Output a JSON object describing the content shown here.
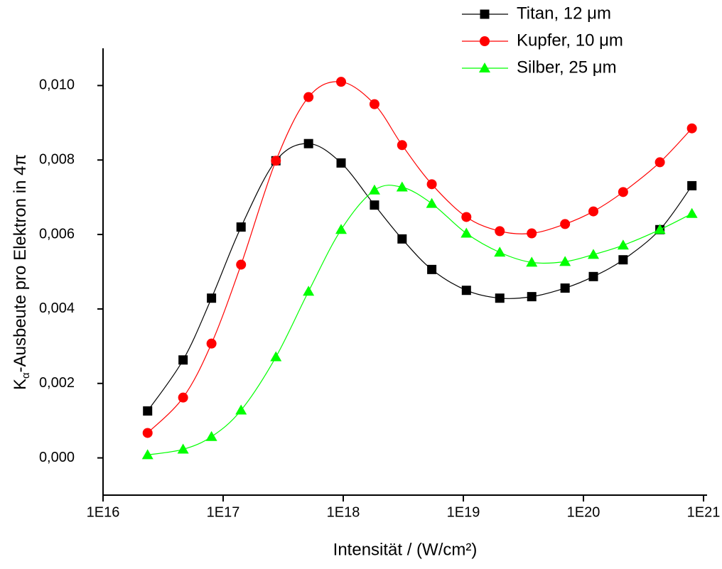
{
  "chart_data": {
    "type": "line",
    "x_label": "Intensität / (W/cm²)",
    "y_label": {
      "main": "K",
      "sub": "α",
      "rest": "-Ausbeute pro Elektron in 4π"
    },
    "log_x": true,
    "xlim": [
      1e+16,
      1.07e+21
    ],
    "ylim": [
      -0.001,
      0.011
    ],
    "xticks": [
      {
        "value": 1e+16,
        "label": "1E16"
      },
      {
        "value": 1e+17,
        "label": "1E17"
      },
      {
        "value": 1e+18,
        "label": "1E18"
      },
      {
        "value": 1e+19,
        "label": "1E19"
      },
      {
        "value": 1e+20,
        "label": "1E20"
      },
      {
        "value": 1e+21,
        "label": "1E21"
      }
    ],
    "yticks": [
      {
        "value": 0,
        "label": "0,000"
      },
      {
        "value": 0.002,
        "label": "0,002"
      },
      {
        "value": 0.004,
        "label": "0,004"
      },
      {
        "value": 0.006,
        "label": "0,006"
      },
      {
        "value": 0.008,
        "label": "0,008"
      },
      {
        "value": 0.01,
        "label": "0,010"
      }
    ],
    "legend": "top-right",
    "x": [
      2.35e+16,
      4.64e+16,
      8e+16,
      1.41e+17,
      2.75e+17,
      5.14e+17,
      9.6e+17,
      1.82e+18,
      3.09e+18,
      5.46e+18,
      1.06e+19,
      2.01e+19,
      3.71e+19,
      7.03e+19,
      1.21e+20,
      2.14e+20,
      4.33e+20,
      8e+20
    ],
    "series": [
      {
        "name": "Titan, 12 μm",
        "color": "#000000",
        "marker": "square",
        "values": [
          0.00126,
          0.00263,
          0.00429,
          0.0062,
          0.00798,
          0.00844,
          0.00792,
          0.00679,
          0.00588,
          0.00506,
          0.0045,
          0.00429,
          0.00433,
          0.00456,
          0.00487,
          0.00532,
          0.00613,
          0.00731
        ]
      },
      {
        "name": "Kupfer, 10 μm",
        "color": "#ff0000",
        "marker": "circle",
        "values": [
          0.00067,
          0.00162,
          0.00307,
          0.00519,
          0.00798,
          0.00969,
          0.0101,
          0.0095,
          0.0084,
          0.00735,
          0.00647,
          0.00609,
          0.00603,
          0.00628,
          0.00662,
          0.00714,
          0.00794,
          0.00885
        ]
      },
      {
        "name": "Silber, 25 μm",
        "color": "#00ff00",
        "marker": "triangle",
        "values": [
          8e-05,
          0.00023,
          0.00057,
          0.00128,
          0.00271,
          0.00447,
          0.00613,
          0.00719,
          0.00727,
          0.00683,
          0.00603,
          0.00552,
          0.00525,
          0.00527,
          0.00546,
          0.00571,
          0.00613,
          0.00656
        ]
      }
    ]
  }
}
